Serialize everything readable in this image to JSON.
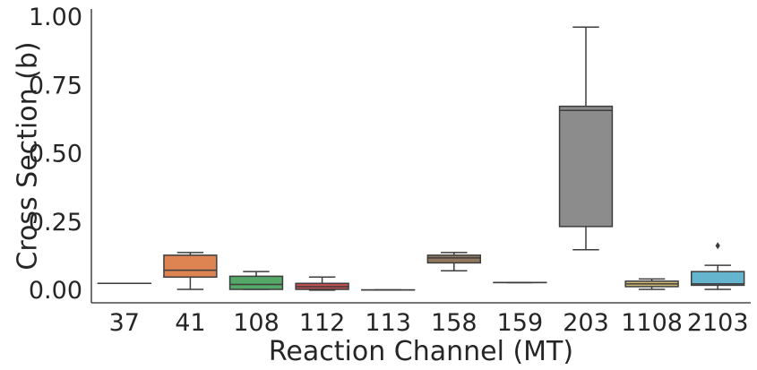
{
  "chart_data": {
    "type": "box",
    "xlabel": "Reaction Channel (MT)",
    "ylabel": "Cross Section (b)",
    "ylim": [
      -0.05,
      1.0
    ],
    "yticks": [
      "0.00",
      "0.25",
      "0.50",
      "0.75",
      "1.00"
    ],
    "ytick_values": [
      0.0,
      0.25,
      0.5,
      0.75,
      1.0
    ],
    "grid": false,
    "categories": [
      "37",
      "41",
      "108",
      "112",
      "113",
      "158",
      "159",
      "203",
      "1108",
      "2103"
    ],
    "boxes": [
      {
        "category": "37",
        "color": "#4c72b0",
        "whisker_low": 0.022,
        "q1": 0.022,
        "median": 0.022,
        "q3": 0.022,
        "whisker_high": 0.022,
        "fliers": []
      },
      {
        "category": "41",
        "color": "#dd8452",
        "whisker_low": 0.0,
        "q1": 0.045,
        "median": 0.07,
        "q3": 0.125,
        "whisker_high": 0.135,
        "fliers": []
      },
      {
        "category": "108",
        "color": "#55a868",
        "whisker_low": 0.0,
        "q1": 0.0,
        "median": 0.018,
        "q3": 0.048,
        "whisker_high": 0.065,
        "fliers": []
      },
      {
        "category": "112",
        "color": "#c44e52",
        "whisker_low": -0.003,
        "q1": 0.0,
        "median": 0.01,
        "q3": 0.022,
        "whisker_high": 0.045,
        "fliers": []
      },
      {
        "category": "113",
        "color": "#8172b3",
        "whisker_low": -0.002,
        "q1": -0.002,
        "median": -0.002,
        "q3": -0.002,
        "whisker_high": -0.002,
        "fliers": []
      },
      {
        "category": "158",
        "color": "#937860",
        "whisker_low": 0.068,
        "q1": 0.097,
        "median": 0.115,
        "q3": 0.125,
        "whisker_high": 0.135,
        "fliers": []
      },
      {
        "category": "159",
        "color": "#da8bc3",
        "whisker_low": 0.025,
        "q1": 0.025,
        "median": 0.025,
        "q3": 0.025,
        "whisker_high": 0.025,
        "fliers": []
      },
      {
        "category": "203",
        "color": "#8c8c8c",
        "whisker_low": 0.145,
        "q1": 0.23,
        "median": 0.655,
        "q3": 0.67,
        "whisker_high": 0.96,
        "fliers": []
      },
      {
        "category": "1108",
        "color": "#ccb974",
        "whisker_low": 0.0,
        "q1": 0.01,
        "median": 0.02,
        "q3": 0.03,
        "whisker_high": 0.038,
        "fliers": []
      },
      {
        "category": "2103",
        "color": "#64b5cd",
        "whisker_low": 0.0,
        "q1": 0.015,
        "median": 0.02,
        "q3": 0.065,
        "whisker_high": 0.088,
        "fliers": [
          0.16
        ]
      }
    ]
  }
}
